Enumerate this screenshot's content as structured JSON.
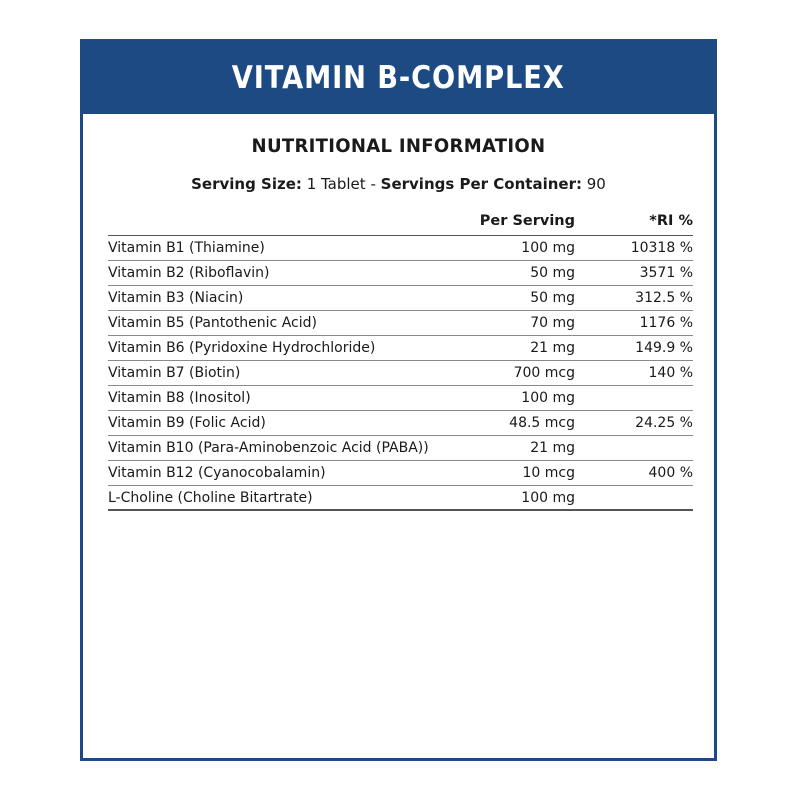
{
  "banner": {
    "title": "VITAMIN B-COMPLEX"
  },
  "info": {
    "heading": "NUTRITIONAL INFORMATION",
    "serving_size_label": "Serving Size:",
    "serving_size_value": "1 Tablet",
    "separator": "-",
    "servings_per_container_label": "Servings Per Container:",
    "servings_per_container_value": "90"
  },
  "table": {
    "headers": {
      "name": "",
      "per_serving": "Per Serving",
      "ri": "*RI %"
    },
    "rows": [
      {
        "name": "Vitamin B1 (Thiamine)",
        "per_serving": "100 mg",
        "ri": "10318 %"
      },
      {
        "name": "Vitamin B2 (Riboflavin)",
        "per_serving": "50 mg",
        "ri": "3571 %"
      },
      {
        "name": "Vitamin B3 (Niacin)",
        "per_serving": "50 mg",
        "ri": "312.5 %"
      },
      {
        "name": "Vitamin B5 (Pantothenic Acid)",
        "per_serving": "70 mg",
        "ri": "1176 %"
      },
      {
        "name": "Vitamin B6 (Pyridoxine Hydrochloride)",
        "per_serving": "21 mg",
        "ri": "149.9 %"
      },
      {
        "name": "Vitamin B7 (Biotin)",
        "per_serving": "700 mcg",
        "ri": "140 %"
      },
      {
        "name": "Vitamin B8 (Inositol)",
        "per_serving": "100 mg",
        "ri": ""
      },
      {
        "name": "Vitamin B9 (Folic Acid)",
        "per_serving": "48.5 mcg",
        "ri": "24.25 %"
      },
      {
        "name": "Vitamin B10 (Para-Aminobenzoic Acid (PABA))",
        "per_serving": "21 mg",
        "ri": ""
      },
      {
        "name": "Vitamin B12 (Cyanocobalamin)",
        "per_serving": "10 mcg",
        "ri": "400 %"
      },
      {
        "name": "L-Choline (Choline Bitartrate)",
        "per_serving": "100 mg",
        "ri": ""
      }
    ]
  },
  "colors": {
    "brand_blue": "#1d4a82",
    "background": "#ffffff",
    "text": "#1a1a1a"
  }
}
